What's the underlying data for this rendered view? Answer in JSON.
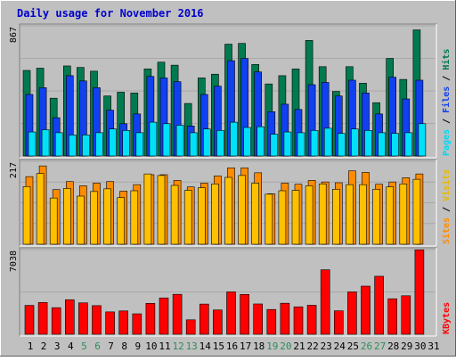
{
  "title": "Daily usage for November 2016",
  "colors": {
    "background": "#c0c0c0",
    "title": "#0000cc",
    "hits": "#007a4e",
    "files": "#1040f0",
    "pages": "#00e0f8",
    "visits": "#ffc000",
    "sites": "#ff8c00",
    "kbytes": "#ff0000",
    "weekend_label": "#2f8c5a",
    "weekday_label": "#000000"
  },
  "chart_data": [
    {
      "type": "bar",
      "panel": "hits",
      "ymax_label": "867",
      "ylim": [
        0,
        867
      ],
      "legend": [
        "Pages",
        "Files",
        "Hits"
      ],
      "categories": [
        "1",
        "2",
        "3",
        "4",
        "5",
        "6",
        "7",
        "8",
        "9",
        "10",
        "11",
        "12",
        "13",
        "14",
        "15",
        "16",
        "17",
        "18",
        "19",
        "20",
        "21",
        "22",
        "23",
        "24",
        "25",
        "26",
        "27",
        "28",
        "29",
        "30",
        "31"
      ],
      "series": [
        {
          "name": "Hits",
          "values": [
            570,
            585,
            385,
            600,
            590,
            565,
            400,
            425,
            420,
            580,
            625,
            605,
            350,
            520,
            545,
            745,
            750,
            610,
            480,
            535,
            580,
            770,
            595,
            430,
            595,
            485,
            355,
            650,
            510,
            840,
            0
          ]
        },
        {
          "name": "Files",
          "values": [
            410,
            455,
            255,
            535,
            500,
            455,
            305,
            215,
            280,
            530,
            520,
            495,
            200,
            410,
            465,
            635,
            650,
            560,
            295,
            345,
            310,
            475,
            490,
            400,
            505,
            420,
            280,
            525,
            380,
            505,
            0
          ]
        },
        {
          "name": "Pages",
          "values": [
            160,
            175,
            155,
            140,
            140,
            155,
            180,
            170,
            155,
            225,
            215,
            205,
            155,
            180,
            170,
            225,
            190,
            195,
            145,
            160,
            155,
            170,
            185,
            150,
            180,
            170,
            155,
            150,
            155,
            215,
            0
          ]
        }
      ]
    },
    {
      "type": "bar",
      "panel": "visits",
      "ymax_label": "217",
      "ylim": [
        0,
        217
      ],
      "legend": [
        "Sites",
        "Visits"
      ],
      "categories": [
        "1",
        "2",
        "3",
        "4",
        "5",
        "6",
        "7",
        "8",
        "9",
        "10",
        "11",
        "12",
        "13",
        "14",
        "15",
        "16",
        "17",
        "18",
        "19",
        "20",
        "21",
        "22",
        "23",
        "24",
        "25",
        "26",
        "27",
        "28",
        "29",
        "30",
        "31"
      ],
      "series": [
        {
          "name": "Sites",
          "values": [
            177,
            205,
            143,
            164,
            153,
            160,
            164,
            139,
            156,
            182,
            182,
            167,
            150,
            160,
            179,
            200,
            200,
            187,
            132,
            160,
            157,
            167,
            163,
            161,
            192,
            188,
            157,
            163,
            174,
            184,
            0
          ]
        },
        {
          "name": "Visits",
          "values": [
            151,
            185,
            121,
            146,
            126,
            138,
            145,
            122,
            140,
            184,
            180,
            154,
            141,
            148,
            158,
            175,
            180,
            160,
            131,
            140,
            141,
            153,
            158,
            144,
            156,
            156,
            144,
            150,
            158,
            170,
            0
          ]
        }
      ]
    },
    {
      "type": "bar",
      "panel": "kbytes",
      "ymax_label": "7038",
      "ylim": [
        0,
        7038
      ],
      "legend": [
        "KBytes"
      ],
      "categories": [
        "1",
        "2",
        "3",
        "4",
        "5",
        "6",
        "7",
        "8",
        "9",
        "10",
        "11",
        "12",
        "13",
        "14",
        "15",
        "16",
        "17",
        "18",
        "19",
        "20",
        "21",
        "22",
        "23",
        "24",
        "25",
        "26",
        "27",
        "28",
        "29",
        "30",
        "31"
      ],
      "series": [
        {
          "name": "KBytes",
          "values": [
            2400,
            2640,
            2210,
            2870,
            2610,
            2380,
            1860,
            1940,
            1700,
            2570,
            3020,
            3320,
            1200,
            2510,
            2020,
            3520,
            3310,
            2520,
            2060,
            2580,
            2280,
            2410,
            5360,
            1950,
            3520,
            4000,
            4820,
            2950,
            3200,
            7020,
            0
          ]
        }
      ]
    }
  ],
  "day_labels": [
    "1",
    "2",
    "3",
    "4",
    "5",
    "6",
    "7",
    "8",
    "9",
    "10",
    "11",
    "12",
    "13",
    "14",
    "15",
    "16",
    "17",
    "18",
    "19",
    "20",
    "21",
    "22",
    "23",
    "24",
    "25",
    "26",
    "27",
    "28",
    "29",
    "30",
    "31"
  ],
  "weekend_days": [
    5,
    6,
    12,
    13,
    19,
    20,
    26,
    27
  ]
}
